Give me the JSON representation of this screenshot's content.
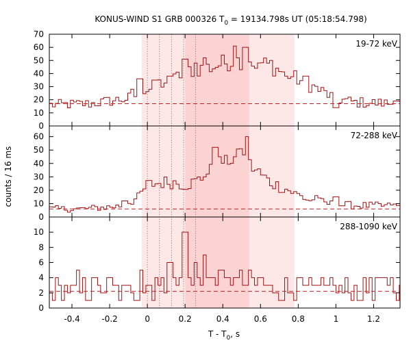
{
  "chart_data": {
    "type": "line",
    "title_main": "KONUS-WIND S1 GRB 000326 T",
    "title_sub": "0",
    "title_rest": " = 19134.798s UT (05:18:54.798)",
    "xlabel_main": "T - T",
    "xlabel_sub": "0",
    "xlabel_rest": ", s",
    "ylabel": "counts / 16 ms",
    "xlim": [
      -0.52,
      1.34
    ],
    "x_ticks": [
      -0.4,
      -0.2,
      0,
      0.2,
      0.4,
      0.6,
      0.8,
      1,
      1.2
    ],
    "x_tick_labels": [
      "-0.4",
      "-0.2",
      "0",
      "0.2",
      "0.4",
      "0.6",
      "0.8",
      "1",
      "1.2"
    ],
    "bin_width": 0.016,
    "shaded_intervals": [
      {
        "start": -0.03,
        "end": 0.78,
        "shade": "light"
      },
      {
        "start": 0.2,
        "end": 0.54,
        "shade": "dark"
      }
    ],
    "vertical_markers": [
      0.0,
      0.064,
      0.128,
      0.192,
      0.256
    ],
    "colors": {
      "line": "#a01010",
      "dashed": "#c02020",
      "shade_light": "#fde7e7",
      "shade_dark": "#fbd3d3",
      "marker": "#8a7a7a"
    },
    "panels": [
      {
        "label": "19-72 keV",
        "ylim": [
          0,
          70
        ],
        "y_ticks": [
          0,
          10,
          20,
          30,
          40,
          50,
          60,
          70
        ],
        "background": 17,
        "profile": [
          [
            -0.52,
            16
          ],
          [
            -0.3,
            17
          ],
          [
            -0.1,
            21
          ],
          [
            -0.05,
            24
          ],
          [
            0.0,
            30
          ],
          [
            0.1,
            30
          ],
          [
            0.2,
            42
          ],
          [
            0.3,
            44
          ],
          [
            0.35,
            45
          ],
          [
            0.4,
            48
          ],
          [
            0.5,
            50
          ],
          [
            0.55,
            50
          ],
          [
            0.65,
            46
          ],
          [
            0.75,
            39
          ],
          [
            0.85,
            32
          ],
          [
            1.0,
            21
          ],
          [
            1.1,
            18
          ],
          [
            1.34,
            17
          ]
        ],
        "spikes": [
          [
            -0.08,
            28
          ],
          [
            -0.04,
            36
          ],
          [
            0.04,
            35
          ],
          [
            0.12,
            38
          ],
          [
            0.2,
            51
          ],
          [
            0.26,
            48
          ],
          [
            0.3,
            52
          ],
          [
            0.46,
            61
          ],
          [
            0.52,
            60
          ],
          [
            0.57,
            44
          ],
          [
            0.66,
            50
          ],
          [
            0.74,
            38
          ],
          [
            0.84,
            38
          ],
          [
            1.0,
            14
          ],
          [
            1.32,
            19
          ]
        ]
      },
      {
        "label": "72-288 keV",
        "ylim": [
          0,
          68
        ],
        "y_ticks": [
          0,
          10,
          20,
          30,
          40,
          50,
          60
        ],
        "background": 6,
        "profile": [
          [
            -0.52,
            6
          ],
          [
            -0.35,
            6
          ],
          [
            -0.15,
            8
          ],
          [
            -0.05,
            14
          ],
          [
            0.0,
            24
          ],
          [
            0.1,
            26
          ],
          [
            0.15,
            26
          ],
          [
            0.2,
            24
          ],
          [
            0.25,
            26
          ],
          [
            0.3,
            30
          ],
          [
            0.4,
            42
          ],
          [
            0.5,
            45
          ],
          [
            0.55,
            38
          ],
          [
            0.65,
            26
          ],
          [
            0.75,
            20
          ],
          [
            0.85,
            13
          ],
          [
            1.0,
            9
          ],
          [
            1.34,
            8
          ]
        ],
        "spikes": [
          [
            -0.12,
            12
          ],
          [
            0.3,
            30
          ],
          [
            0.36,
            52
          ],
          [
            0.42,
            46
          ],
          [
            0.5,
            51
          ],
          [
            0.53,
            60
          ],
          [
            0.59,
            36
          ],
          [
            0.78,
            19
          ],
          [
            0.9,
            16
          ],
          [
            1.0,
            15
          ],
          [
            1.3,
            9
          ]
        ]
      },
      {
        "label": "288-1090 keV",
        "ylim": [
          0,
          12
        ],
        "y_ticks": [
          0,
          2,
          4,
          6,
          8,
          10
        ],
        "background": 2.2,
        "profile": [
          [
            -0.52,
            2.3
          ],
          [
            -0.1,
            2.4
          ],
          [
            0.0,
            2.6
          ],
          [
            0.2,
            3.2
          ],
          [
            0.4,
            3.5
          ],
          [
            0.55,
            3.2
          ],
          [
            0.7,
            2.4
          ],
          [
            1.0,
            2.3
          ],
          [
            1.34,
            2.2
          ]
        ],
        "spikes": [
          [
            -0.37,
            5
          ],
          [
            -0.29,
            4
          ],
          [
            -0.2,
            4
          ],
          [
            -0.03,
            5
          ],
          [
            0.05,
            4
          ],
          [
            0.12,
            6
          ],
          [
            0.2,
            10
          ],
          [
            0.26,
            6
          ],
          [
            0.3,
            7
          ],
          [
            0.38,
            5
          ],
          [
            0.47,
            4
          ],
          [
            0.6,
            4
          ],
          [
            0.74,
            4
          ],
          [
            0.8,
            4
          ],
          [
            0.98,
            4
          ],
          [
            1.18,
            4
          ],
          [
            1.24,
            4
          ],
          [
            1.3,
            4
          ]
        ]
      }
    ]
  }
}
